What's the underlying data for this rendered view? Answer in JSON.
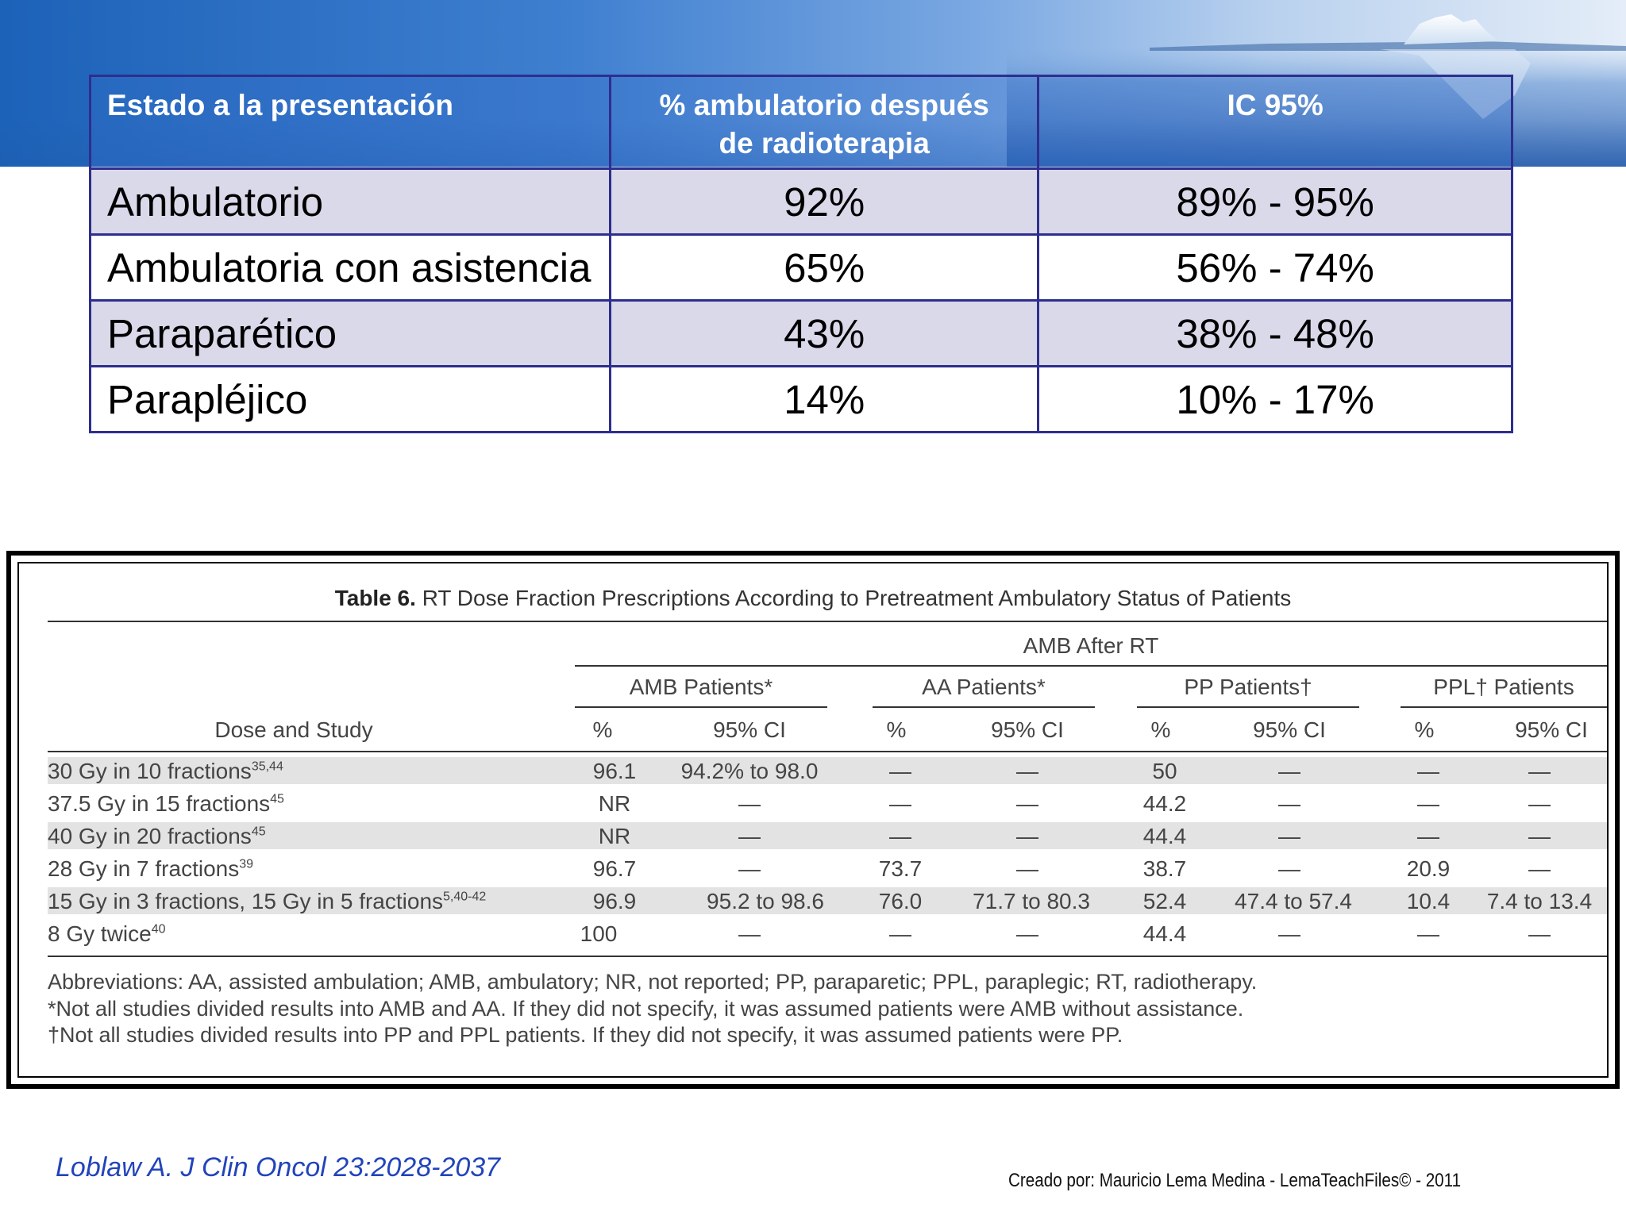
{
  "summary_table": {
    "headers": [
      "Estado a la presentación",
      "% ambulatorio después de radioterapia",
      "IC 95%"
    ],
    "header_line1": "% ambulatorio después",
    "header_line2": "de radioterapia",
    "rows": [
      {
        "status": "Ambulatorio",
        "pct": "92%",
        "ci": "89% - 95%"
      },
      {
        "status": "Ambulatoria con asistencia",
        "pct": "65%",
        "ci": "56% - 74%"
      },
      {
        "status": "Paraparético",
        "pct": "43%",
        "ci": "38% - 48%"
      },
      {
        "status": "Parapléjico",
        "pct": "14%",
        "ci": "10% - 17%"
      }
    ]
  },
  "journal_table": {
    "title_bold": "Table 6.",
    "title_rest": "RT Dose Fraction Prescriptions According to Pretreatment Ambulatory Status of Patients",
    "span_header": "AMB After RT",
    "groups": [
      "AMB Patients*",
      "AA Patients*",
      "PP Patients†",
      "PPL† Patients"
    ],
    "row_header": "Dose and Study",
    "sub_headers": [
      "%",
      "95% CI",
      "%",
      "95% CI",
      "%",
      "95% CI",
      "%",
      "95% CI"
    ],
    "rows": [
      {
        "dose": "30 Gy in 10 fractions",
        "ref": "35,44",
        "cells": [
          "96.1",
          "94.2% to 98.0",
          "—",
          "—",
          "50",
          "—",
          "—",
          "—"
        ]
      },
      {
        "dose": "37.5 Gy in 15 fractions",
        "ref": "45",
        "cells": [
          "NR",
          "—",
          "—",
          "—",
          "44.2",
          "—",
          "—",
          "—"
        ]
      },
      {
        "dose": "40 Gy in 20 fractions",
        "ref": "45",
        "cells": [
          "NR",
          "—",
          "—",
          "—",
          "44.4",
          "—",
          "—",
          "—"
        ]
      },
      {
        "dose": "28 Gy in 7 fractions",
        "ref": "39",
        "cells": [
          "96.7",
          "—",
          "73.7",
          "—",
          "38.7",
          "—",
          "20.9",
          "—"
        ]
      },
      {
        "dose": "15 Gy in 3 fractions, 15 Gy in 5 fractions",
        "ref": "5,40-42",
        "cells": [
          "96.9",
          "95.2 to 98.6",
          "76.0",
          "71.7 to 80.3",
          "52.4",
          "47.4 to 57.4",
          "10.4",
          "7.4 to 13.4"
        ]
      },
      {
        "dose": "8 Gy twice",
        "ref": "40",
        "cells": [
          "100",
          "—",
          "—",
          "—",
          "44.4",
          "—",
          "—",
          "—"
        ]
      }
    ],
    "footnotes": [
      "Abbreviations: AA, assisted ambulation; AMB, ambulatory; NR, not reported; PP, paraparetic; PPL, paraplegic; RT, radiotherapy.",
      "*Not all studies divided results into AMB and AA. If they did not specify, it was assumed patients were AMB without assistance.",
      "†Not all studies divided results into PP and PPL patients. If they did not specify, it was assumed patients were PP."
    ]
  },
  "citation": "Loblaw A. J Clin Oncol 23:2028-2037",
  "credit": "Creado por: Mauricio Lema Medina - LemaTeachFiles© - 2011",
  "colors": {
    "banner": "#1c62b8",
    "table_border": "#2e2e8e",
    "row_shade": "#d9d9ea",
    "citation": "#2244bb"
  }
}
